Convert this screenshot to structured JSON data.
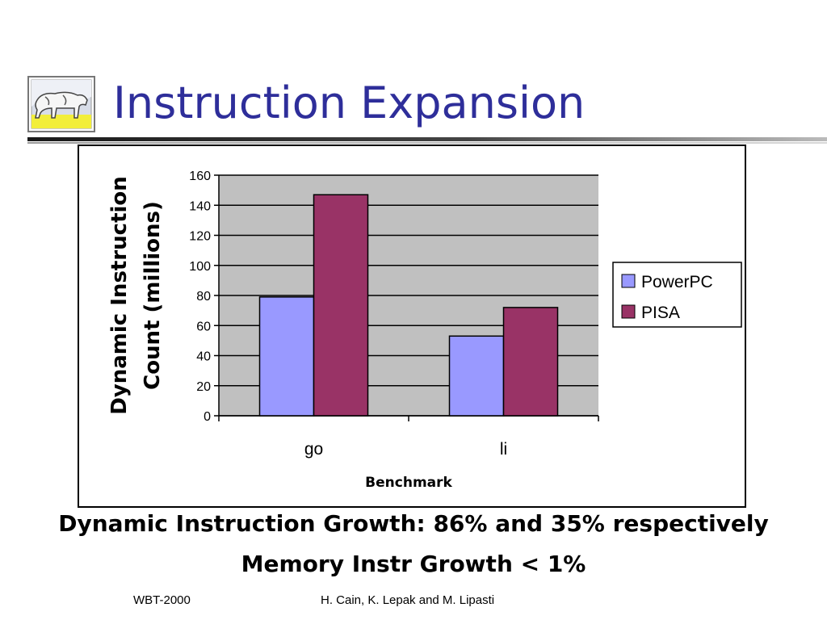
{
  "slide": {
    "title": "Instruction Expansion",
    "caption_line1": "Dynamic Instruction Growth: 86% and 35% respectively",
    "caption_line2": "Memory Instr Growth < 1%",
    "footer_left": "WBT-2000",
    "footer_center": "H. Cain, K. Lepak and M. Lipasti"
  },
  "logo": {
    "icon": "cow-logo-icon"
  },
  "colors": {
    "title": "#2e2e9a",
    "powerpc": "#9999ff",
    "pisa": "#993366",
    "plot_bg": "#c0c0c0"
  },
  "chart_data": {
    "type": "bar",
    "categories": [
      "go",
      "li"
    ],
    "series": [
      {
        "name": "PowerPC",
        "values": [
          79,
          53
        ]
      },
      {
        "name": "PISA",
        "values": [
          147,
          72
        ]
      }
    ],
    "xlabel": "Benchmark",
    "ylabel_line1": "Dynamic Instruction",
    "ylabel_line2": "Count (millions)",
    "ylim": [
      0,
      160
    ],
    "yticks": [
      "0",
      "20",
      "40",
      "60",
      "80",
      "100",
      "120",
      "140",
      "160"
    ],
    "grid": true,
    "legend": "right"
  }
}
